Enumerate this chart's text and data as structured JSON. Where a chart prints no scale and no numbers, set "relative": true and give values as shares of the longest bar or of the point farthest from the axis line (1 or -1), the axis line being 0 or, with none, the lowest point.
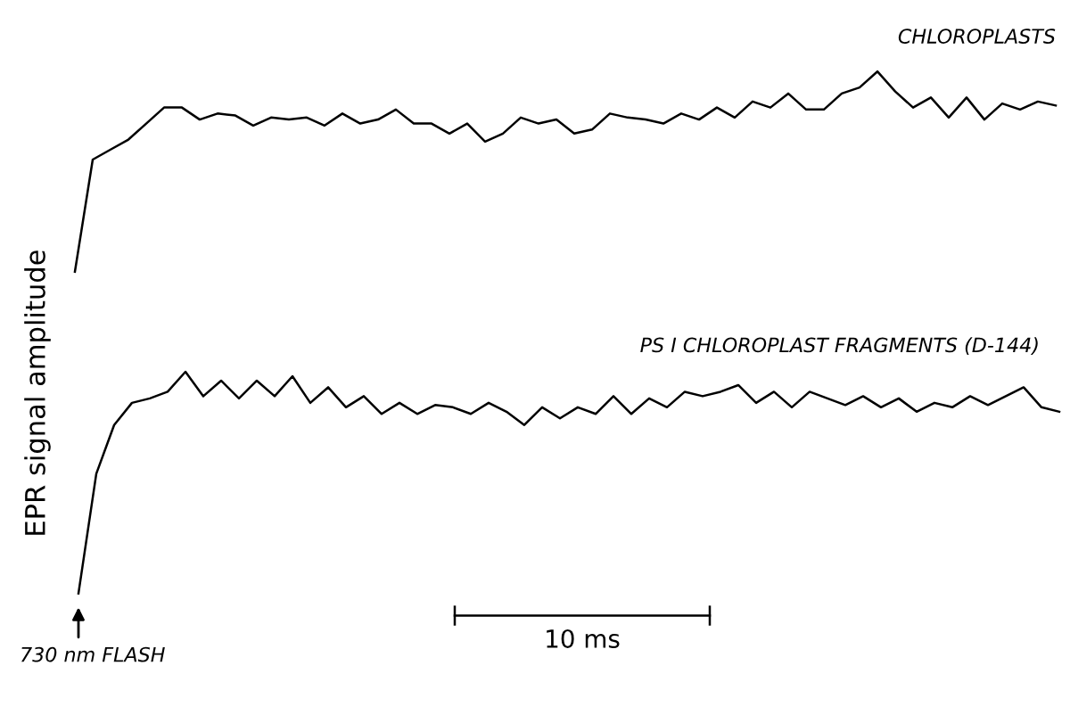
{
  "chart_data": [
    {
      "type": "line",
      "relative": true,
      "ylabel": "EPR signal amplitude",
      "annotations": [
        "CHLOROPLASTS"
      ],
      "categories": [
        null,
        null,
        null,
        null,
        null,
        null,
        null,
        null,
        null,
        null,
        null,
        null,
        null,
        null,
        null,
        null,
        null,
        null,
        null,
        null,
        null,
        null,
        null,
        null,
        null,
        null,
        null,
        null,
        null,
        null,
        null,
        null,
        null,
        null,
        null,
        null,
        null,
        null,
        null,
        null,
        null,
        null,
        null,
        null,
        null,
        null,
        null,
        null,
        null,
        null,
        null,
        null,
        null,
        null,
        null,
        null
      ],
      "series": [
        {
          "color": "#000000",
          "values": [
            0,
            0.56,
            0.61,
            0.66,
            0.74,
            0.82,
            0.82,
            0.76,
            0.79,
            0.78,
            0.73,
            0.77,
            0.76,
            0.77,
            0.73,
            0.79,
            0.74,
            0.76,
            0.81,
            0.74,
            0.74,
            0.69,
            0.74,
            0.65,
            0.69,
            0.77,
            0.74,
            0.76,
            0.69,
            0.71,
            0.79,
            0.77,
            0.76,
            0.74,
            0.79,
            0.76,
            0.82,
            0.77,
            0.85,
            0.82,
            0.89,
            0.81,
            0.81,
            0.89,
            0.92,
            1,
            0.9,
            0.82,
            0.87,
            0.77,
            0.87,
            0.76,
            0.84,
            0.81,
            0.85,
            0.83
          ]
        }
      ]
    },
    {
      "type": "line",
      "relative": true,
      "annotations": [
        "PS I CHLOROPLAST FRAGMENTS (D-144)",
        "10 ms",
        "730 nm FLASH"
      ],
      "categories": [
        null,
        null,
        null,
        null,
        null,
        null,
        null,
        null,
        null,
        null,
        null,
        null,
        null,
        null,
        null,
        null,
        null,
        null,
        null,
        null,
        null,
        null,
        null,
        null,
        null,
        null,
        null,
        null,
        null,
        null,
        null,
        null,
        null,
        null,
        null,
        null,
        null,
        null,
        null,
        null,
        null,
        null,
        null,
        null,
        null,
        null,
        null,
        null,
        null,
        null,
        null,
        null,
        null,
        null,
        null,
        null
      ],
      "series": [
        {
          "color": "#000000",
          "values": [
            0,
            0.54,
            0.76,
            0.86,
            0.88,
            0.91,
            1,
            0.89,
            0.96,
            0.88,
            0.96,
            0.89,
            0.98,
            0.86,
            0.93,
            0.84,
            0.89,
            0.81,
            0.86,
            0.81,
            0.85,
            0.84,
            0.81,
            0.86,
            0.82,
            0.76,
            0.84,
            0.79,
            0.84,
            0.81,
            0.89,
            0.81,
            0.88,
            0.84,
            0.91,
            0.89,
            0.91,
            0.94,
            0.86,
            0.91,
            0.84,
            0.91,
            0.88,
            0.85,
            0.89,
            0.84,
            0.88,
            0.82,
            0.86,
            0.84,
            0.89,
            0.85,
            0.89,
            0.93,
            0.84,
            0.82
          ]
        }
      ]
    }
  ]
}
